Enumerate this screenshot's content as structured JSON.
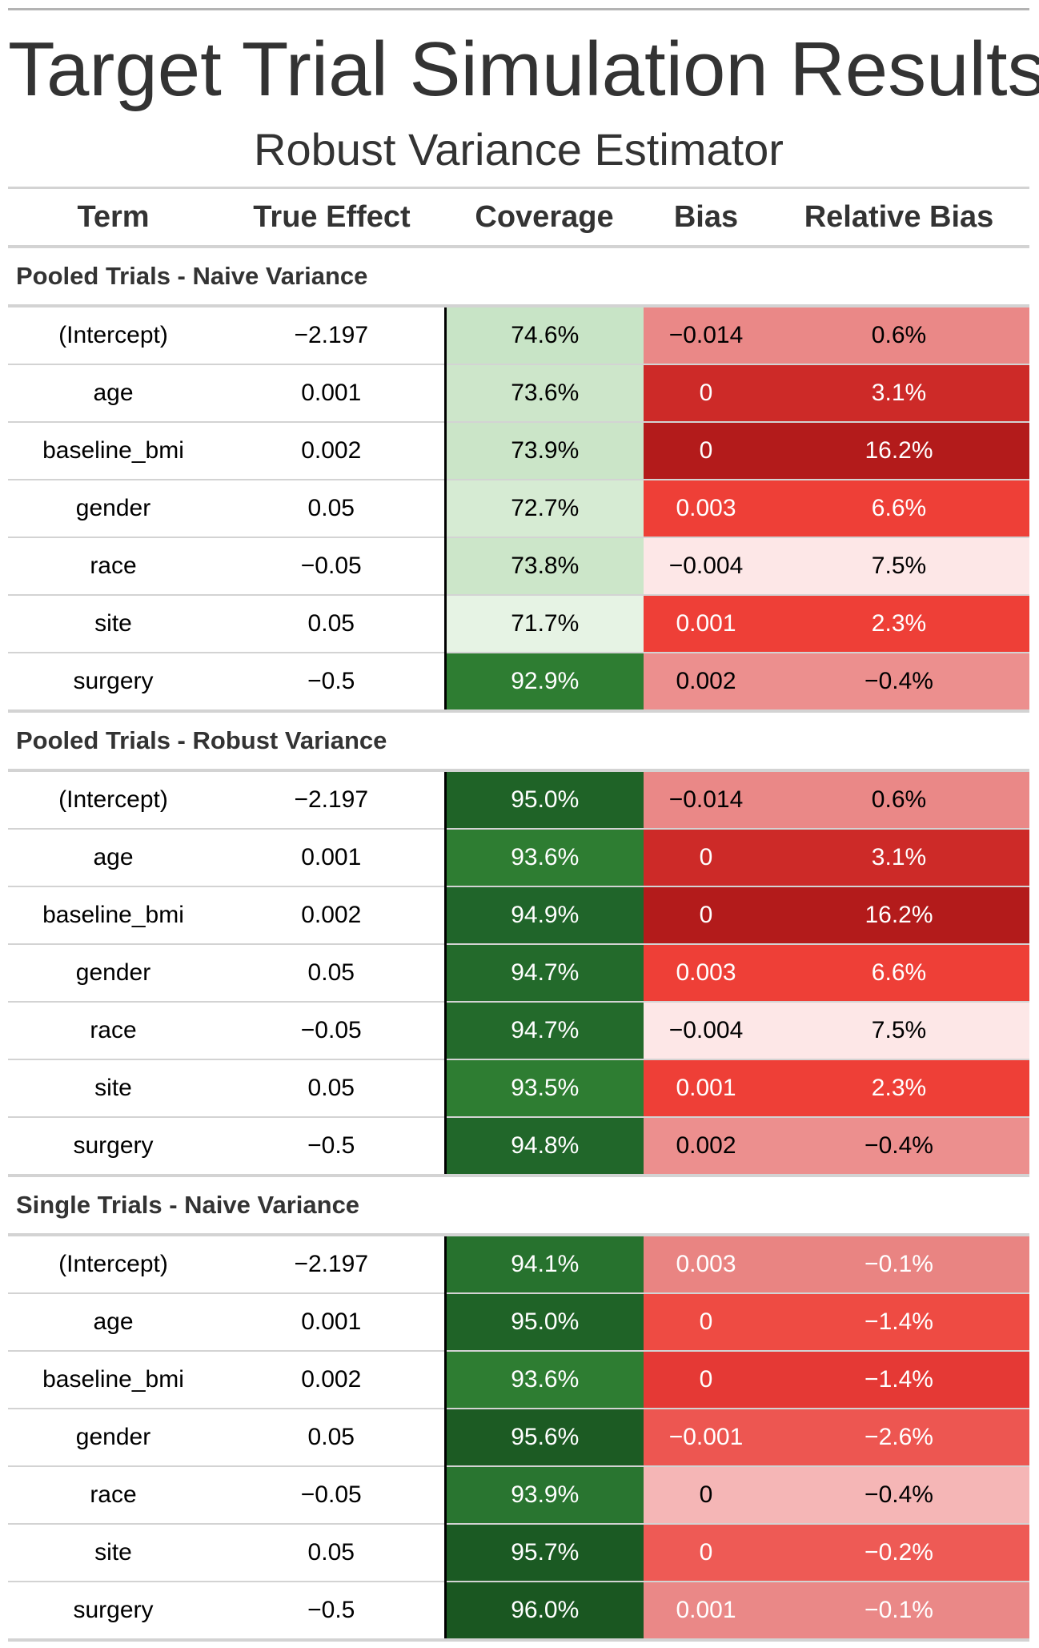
{
  "title": "Target Trial Simulation Results",
  "subtitle": "Robust Variance Estimator",
  "columns": {
    "term": "Term",
    "true_effect": "True Effect",
    "coverage": "Coverage",
    "bias": "Bias",
    "relative_bias": "Relative Bias"
  },
  "colors": {
    "coverage_scale": [
      "#e7f3e5",
      "#c7e3c4",
      "#2e7d32",
      "#1e5e26"
    ],
    "bias_scale": [
      "#fde7e7",
      "#eb8a88",
      "#ee3f37",
      "#cd2a28",
      "#b31b1b"
    ]
  },
  "groups": [
    {
      "label": "Pooled Trials - Naive Variance",
      "rows": [
        {
          "term": "(Intercept)",
          "true_effect": "−2.197",
          "coverage": "74.6%",
          "bias": "−0.014",
          "relative_bias": "0.6%",
          "cov_bg": "#c8e4c6",
          "cov_fg": "#000000",
          "bias_bg": "#ea8887",
          "bias_fg": "#000000",
          "rel_bg": "#ea8887",
          "rel_fg": "#000000"
        },
        {
          "term": "age",
          "true_effect": "0.001",
          "coverage": "73.6%",
          "bias": "0",
          "relative_bias": "3.1%",
          "cov_bg": "#cde6ca",
          "cov_fg": "#000000",
          "bias_bg": "#cd2a28",
          "bias_fg": "#ffffff",
          "rel_bg": "#cd2a28",
          "rel_fg": "#ffffff"
        },
        {
          "term": "baseline_bmi",
          "true_effect": "0.002",
          "coverage": "73.9%",
          "bias": "0",
          "relative_bias": "16.2%",
          "cov_bg": "#cbe5c8",
          "cov_fg": "#000000",
          "bias_bg": "#b31b1b",
          "bias_fg": "#ffffff",
          "rel_bg": "#b31b1b",
          "rel_fg": "#ffffff"
        },
        {
          "term": "gender",
          "true_effect": "0.05",
          "coverage": "72.7%",
          "bias": "0.003",
          "relative_bias": "6.6%",
          "cov_bg": "#d6ebd3",
          "cov_fg": "#000000",
          "bias_bg": "#ee3f37",
          "bias_fg": "#ffffff",
          "rel_bg": "#ee3f37",
          "rel_fg": "#ffffff"
        },
        {
          "term": "race",
          "true_effect": "−0.05",
          "coverage": "73.8%",
          "bias": "−0.004",
          "relative_bias": "7.5%",
          "cov_bg": "#cce6c9",
          "cov_fg": "#000000",
          "bias_bg": "#fde7e7",
          "bias_fg": "#000000",
          "rel_bg": "#fde7e7",
          "rel_fg": "#000000"
        },
        {
          "term": "site",
          "true_effect": "0.05",
          "coverage": "71.7%",
          "bias": "0.001",
          "relative_bias": "2.3%",
          "cov_bg": "#e6f3e4",
          "cov_fg": "#000000",
          "bias_bg": "#ee3f37",
          "bias_fg": "#ffffff",
          "rel_bg": "#ee3f37",
          "rel_fg": "#ffffff"
        },
        {
          "term": "surgery",
          "true_effect": "−0.5",
          "coverage": "92.9%",
          "bias": "0.002",
          "relative_bias": "−0.4%",
          "cov_bg": "#2e7d32",
          "cov_fg": "#ffffff",
          "bias_bg": "#ec8f8e",
          "bias_fg": "#000000",
          "rel_bg": "#ec8f8e",
          "rel_fg": "#000000"
        }
      ]
    },
    {
      "label": "Pooled Trials - Robust Variance",
      "rows": [
        {
          "term": "(Intercept)",
          "true_effect": "−2.197",
          "coverage": "95.0%",
          "bias": "−0.014",
          "relative_bias": "0.6%",
          "cov_bg": "#1f6327",
          "cov_fg": "#ffffff",
          "bias_bg": "#ea8887",
          "bias_fg": "#000000",
          "rel_bg": "#ea8887",
          "rel_fg": "#000000"
        },
        {
          "term": "age",
          "true_effect": "0.001",
          "coverage": "93.6%",
          "bias": "0",
          "relative_bias": "3.1%",
          "cov_bg": "#2e7d32",
          "cov_fg": "#ffffff",
          "bias_bg": "#cd2a28",
          "bias_fg": "#ffffff",
          "rel_bg": "#cd2a28",
          "rel_fg": "#ffffff"
        },
        {
          "term": "baseline_bmi",
          "true_effect": "0.002",
          "coverage": "94.9%",
          "bias": "0",
          "relative_bias": "16.2%",
          "cov_bg": "#20652a",
          "cov_fg": "#ffffff",
          "bias_bg": "#b31b1b",
          "bias_fg": "#ffffff",
          "rel_bg": "#b31b1b",
          "rel_fg": "#ffffff"
        },
        {
          "term": "gender",
          "true_effect": "0.05",
          "coverage": "94.7%",
          "bias": "0.003",
          "relative_bias": "6.6%",
          "cov_bg": "#236a2b",
          "cov_fg": "#ffffff",
          "bias_bg": "#ee3f37",
          "bias_fg": "#ffffff",
          "rel_bg": "#ee3f37",
          "rel_fg": "#ffffff"
        },
        {
          "term": "race",
          "true_effect": "−0.05",
          "coverage": "94.7%",
          "bias": "−0.004",
          "relative_bias": "7.5%",
          "cov_bg": "#236a2b",
          "cov_fg": "#ffffff",
          "bias_bg": "#fde7e7",
          "bias_fg": "#000000",
          "rel_bg": "#fde7e7",
          "rel_fg": "#000000"
        },
        {
          "term": "site",
          "true_effect": "0.05",
          "coverage": "93.5%",
          "bias": "0.001",
          "relative_bias": "2.3%",
          "cov_bg": "#2e7d32",
          "cov_fg": "#ffffff",
          "bias_bg": "#ee3f37",
          "bias_fg": "#ffffff",
          "rel_bg": "#ee3f37",
          "rel_fg": "#ffffff"
        },
        {
          "term": "surgery",
          "true_effect": "−0.5",
          "coverage": "94.8%",
          "bias": "0.002",
          "relative_bias": "−0.4%",
          "cov_bg": "#21672a",
          "cov_fg": "#ffffff",
          "bias_bg": "#ec8f8e",
          "bias_fg": "#000000",
          "rel_bg": "#ec8f8e",
          "rel_fg": "#000000"
        }
      ]
    },
    {
      "label": "Single Trials - Naive Variance",
      "rows": [
        {
          "term": "(Intercept)",
          "true_effect": "−2.197",
          "coverage": "94.1%",
          "bias": "0.003",
          "relative_bias": "−0.1%",
          "cov_bg": "#27722e",
          "cov_fg": "#ffffff",
          "bias_bg": "#e98482",
          "bias_fg": "#ffffff",
          "rel_bg": "#e98482",
          "rel_fg": "#ffffff"
        },
        {
          "term": "age",
          "true_effect": "0.001",
          "coverage": "95.0%",
          "bias": "0",
          "relative_bias": "−1.4%",
          "cov_bg": "#1f6327",
          "cov_fg": "#ffffff",
          "bias_bg": "#ee4b43",
          "bias_fg": "#ffffff",
          "rel_bg": "#ee4b43",
          "rel_fg": "#ffffff"
        },
        {
          "term": "baseline_bmi",
          "true_effect": "0.002",
          "coverage": "93.6%",
          "bias": "0",
          "relative_bias": "−1.4%",
          "cov_bg": "#2e7d32",
          "cov_fg": "#ffffff",
          "bias_bg": "#e53935",
          "bias_fg": "#ffffff",
          "rel_bg": "#e53935",
          "rel_fg": "#ffffff"
        },
        {
          "term": "gender",
          "true_effect": "0.05",
          "coverage": "95.6%",
          "bias": "−0.001",
          "relative_bias": "−2.6%",
          "cov_bg": "#1c5b23",
          "cov_fg": "#ffffff",
          "bias_bg": "#ed5651",
          "bias_fg": "#ffffff",
          "rel_bg": "#ed5651",
          "rel_fg": "#ffffff"
        },
        {
          "term": "race",
          "true_effect": "−0.05",
          "coverage": "93.9%",
          "bias": "0",
          "relative_bias": "−0.4%",
          "cov_bg": "#297530",
          "cov_fg": "#ffffff",
          "bias_bg": "#f5b6b6",
          "bias_fg": "#000000",
          "rel_bg": "#f5b6b6",
          "rel_fg": "#000000"
        },
        {
          "term": "site",
          "true_effect": "0.05",
          "coverage": "95.7%",
          "bias": "0",
          "relative_bias": "−0.2%",
          "cov_bg": "#1b5a23",
          "cov_fg": "#ffffff",
          "bias_bg": "#ee5a55",
          "bias_fg": "#ffffff",
          "rel_bg": "#ee5a55",
          "rel_fg": "#ffffff"
        },
        {
          "term": "surgery",
          "true_effect": "−0.5",
          "coverage": "96.0%",
          "bias": "0.001",
          "relative_bias": "−0.1%",
          "cov_bg": "#1a5721",
          "cov_fg": "#ffffff",
          "bias_bg": "#ea8887",
          "bias_fg": "#ffffff",
          "rel_bg": "#ea8887",
          "rel_fg": "#ffffff"
        }
      ]
    }
  ]
}
